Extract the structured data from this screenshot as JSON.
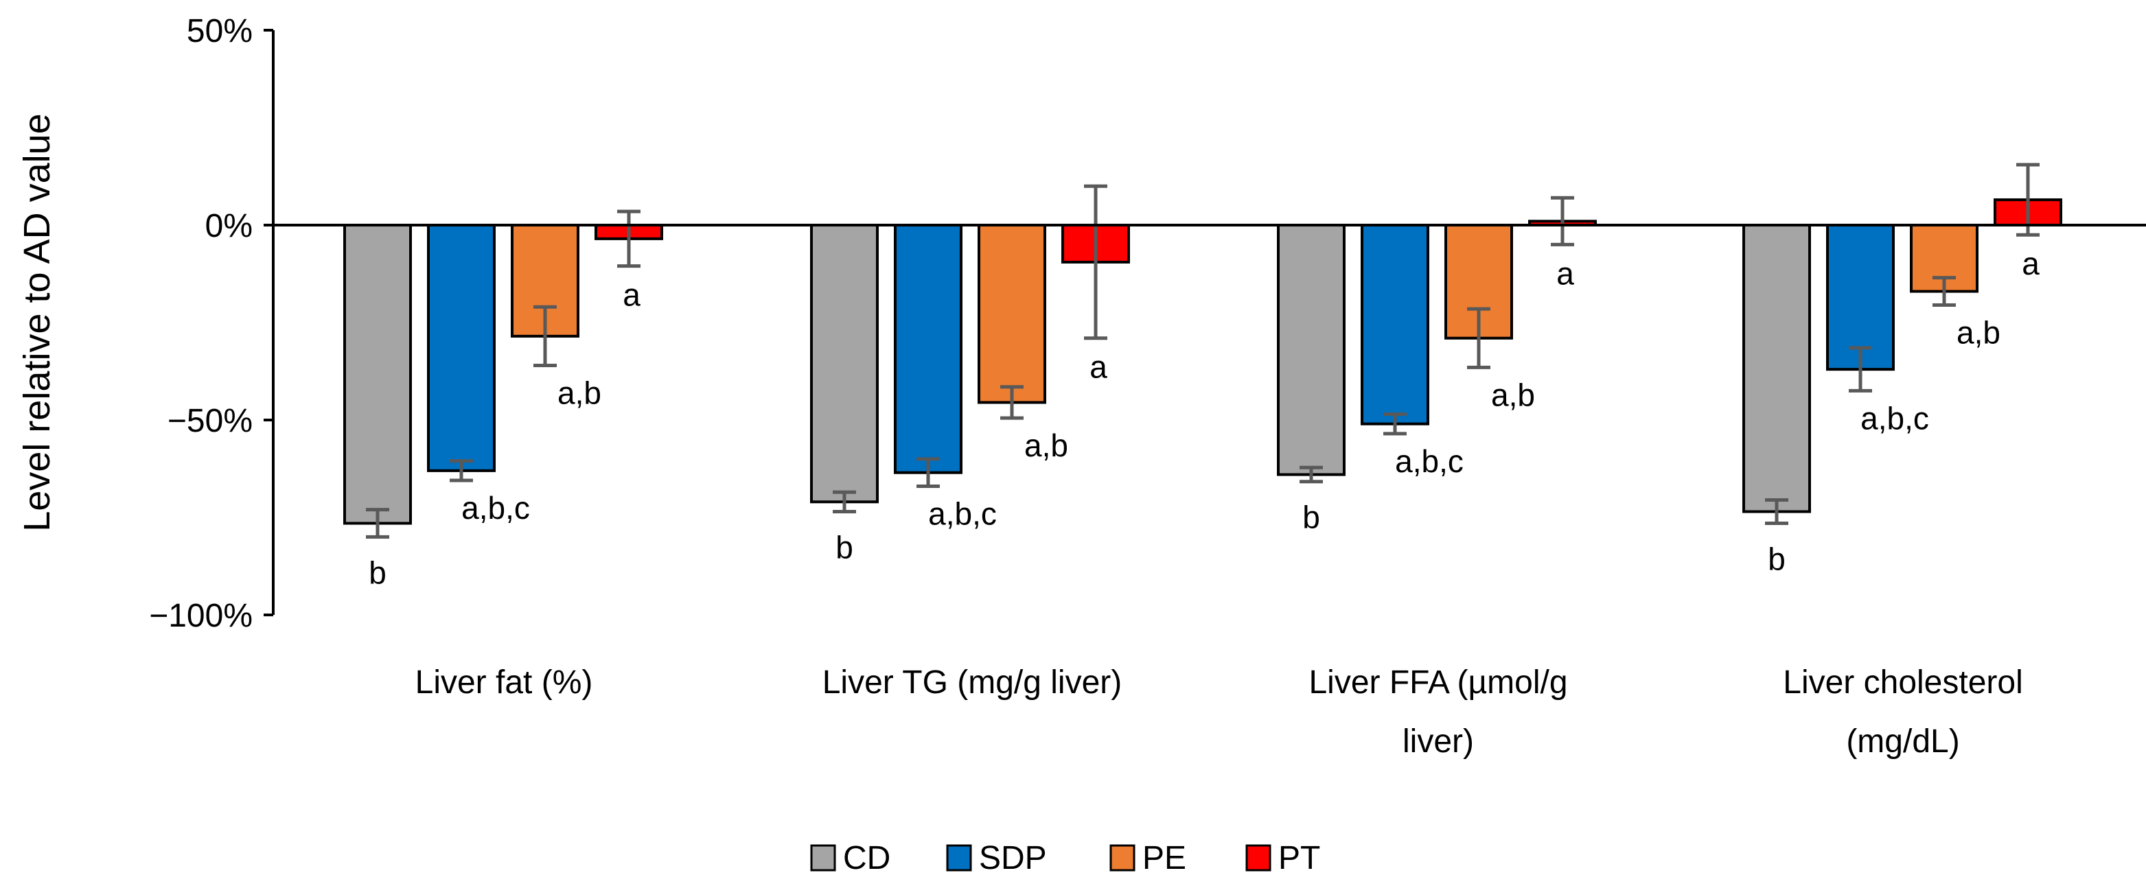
{
  "chart_data": {
    "type": "bar",
    "ylabel": "Level relative to AD value",
    "ylim": [
      -100,
      50
    ],
    "yticks": [
      50,
      0,
      -50,
      -100
    ],
    "ytick_labels": [
      "50%",
      "0%",
      "−50%",
      "−100%"
    ],
    "legend_position": "bottom",
    "categories": [
      [
        "Liver fat (%)"
      ],
      [
        "Liver TG (mg/g liver)"
      ],
      [
        "Liver FFA (µmol/g",
        "liver)"
      ],
      [
        "Liver cholesterol",
        "(mg/dL)"
      ]
    ],
    "series": [
      {
        "name": "CD",
        "color": "#a5a5a5",
        "values": [
          -76.5,
          -71,
          -64,
          -73.5
        ],
        "errors": [
          3.5,
          2.5,
          1.8,
          3
        ],
        "labels": [
          "b",
          "b",
          "b",
          "b"
        ]
      },
      {
        "name": "SDP",
        "color": "#0070c0",
        "values": [
          -63,
          -63.5,
          -51,
          -37
        ],
        "errors": [
          2.5,
          3.5,
          2.5,
          5.5
        ],
        "labels": [
          "a,b,c",
          "a,b,c",
          "a,b,c",
          "a,b,c"
        ]
      },
      {
        "name": "PE",
        "color": "#ed7d31",
        "values": [
          -28.5,
          -45.5,
          -29,
          -17
        ],
        "errors": [
          7.5,
          4,
          7.5,
          3.5
        ],
        "labels": [
          "a,b",
          "a,b",
          "a,b",
          "a,b"
        ]
      },
      {
        "name": "PT",
        "color": "#ff0000",
        "values": [
          -3.5,
          -9.5,
          1,
          6.5
        ],
        "errors": [
          7,
          19.5,
          6,
          9
        ],
        "labels": [
          "a",
          "a",
          "a",
          "a"
        ]
      }
    ]
  }
}
